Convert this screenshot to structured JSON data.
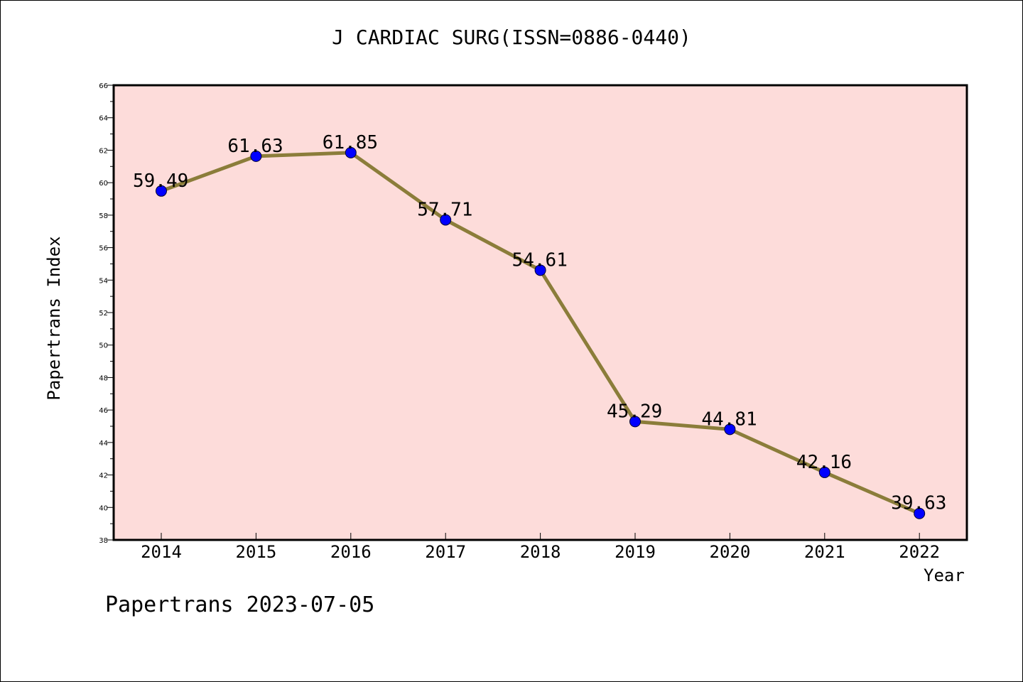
{
  "title": "J CARDIAC SURG(ISSN=0886-0440)",
  "footer": "Papertrans 2023-07-05",
  "chart_data": {
    "type": "line",
    "title": "J CARDIAC SURG(ISSN=0886-0440)",
    "xlabel": "Year",
    "ylabel": "Papertrans Index",
    "categories": [
      "2014",
      "2015",
      "2016",
      "2017",
      "2018",
      "2019",
      "2020",
      "2021",
      "2022"
    ],
    "series": [
      {
        "values": [
          59.49,
          61.63,
          61.85,
          57.71,
          54.61,
          45.29,
          44.81,
          42.16,
          39.63
        ]
      }
    ],
    "data_labels": [
      "59.49",
      "61.63",
      "61.85",
      "57.71",
      "54.61",
      "45.29",
      "44.81",
      "42.16",
      "39.63"
    ],
    "ylim": [
      38,
      66
    ],
    "yticks": [
      38,
      40,
      42,
      44,
      46,
      48,
      50,
      52,
      54,
      56,
      58,
      60,
      62,
      64,
      66
    ],
    "grid": false,
    "colors": {
      "plot_background": "#fddcda",
      "line": "#8b7d3a",
      "marker": "#0000ff",
      "axis": "#000000"
    }
  }
}
